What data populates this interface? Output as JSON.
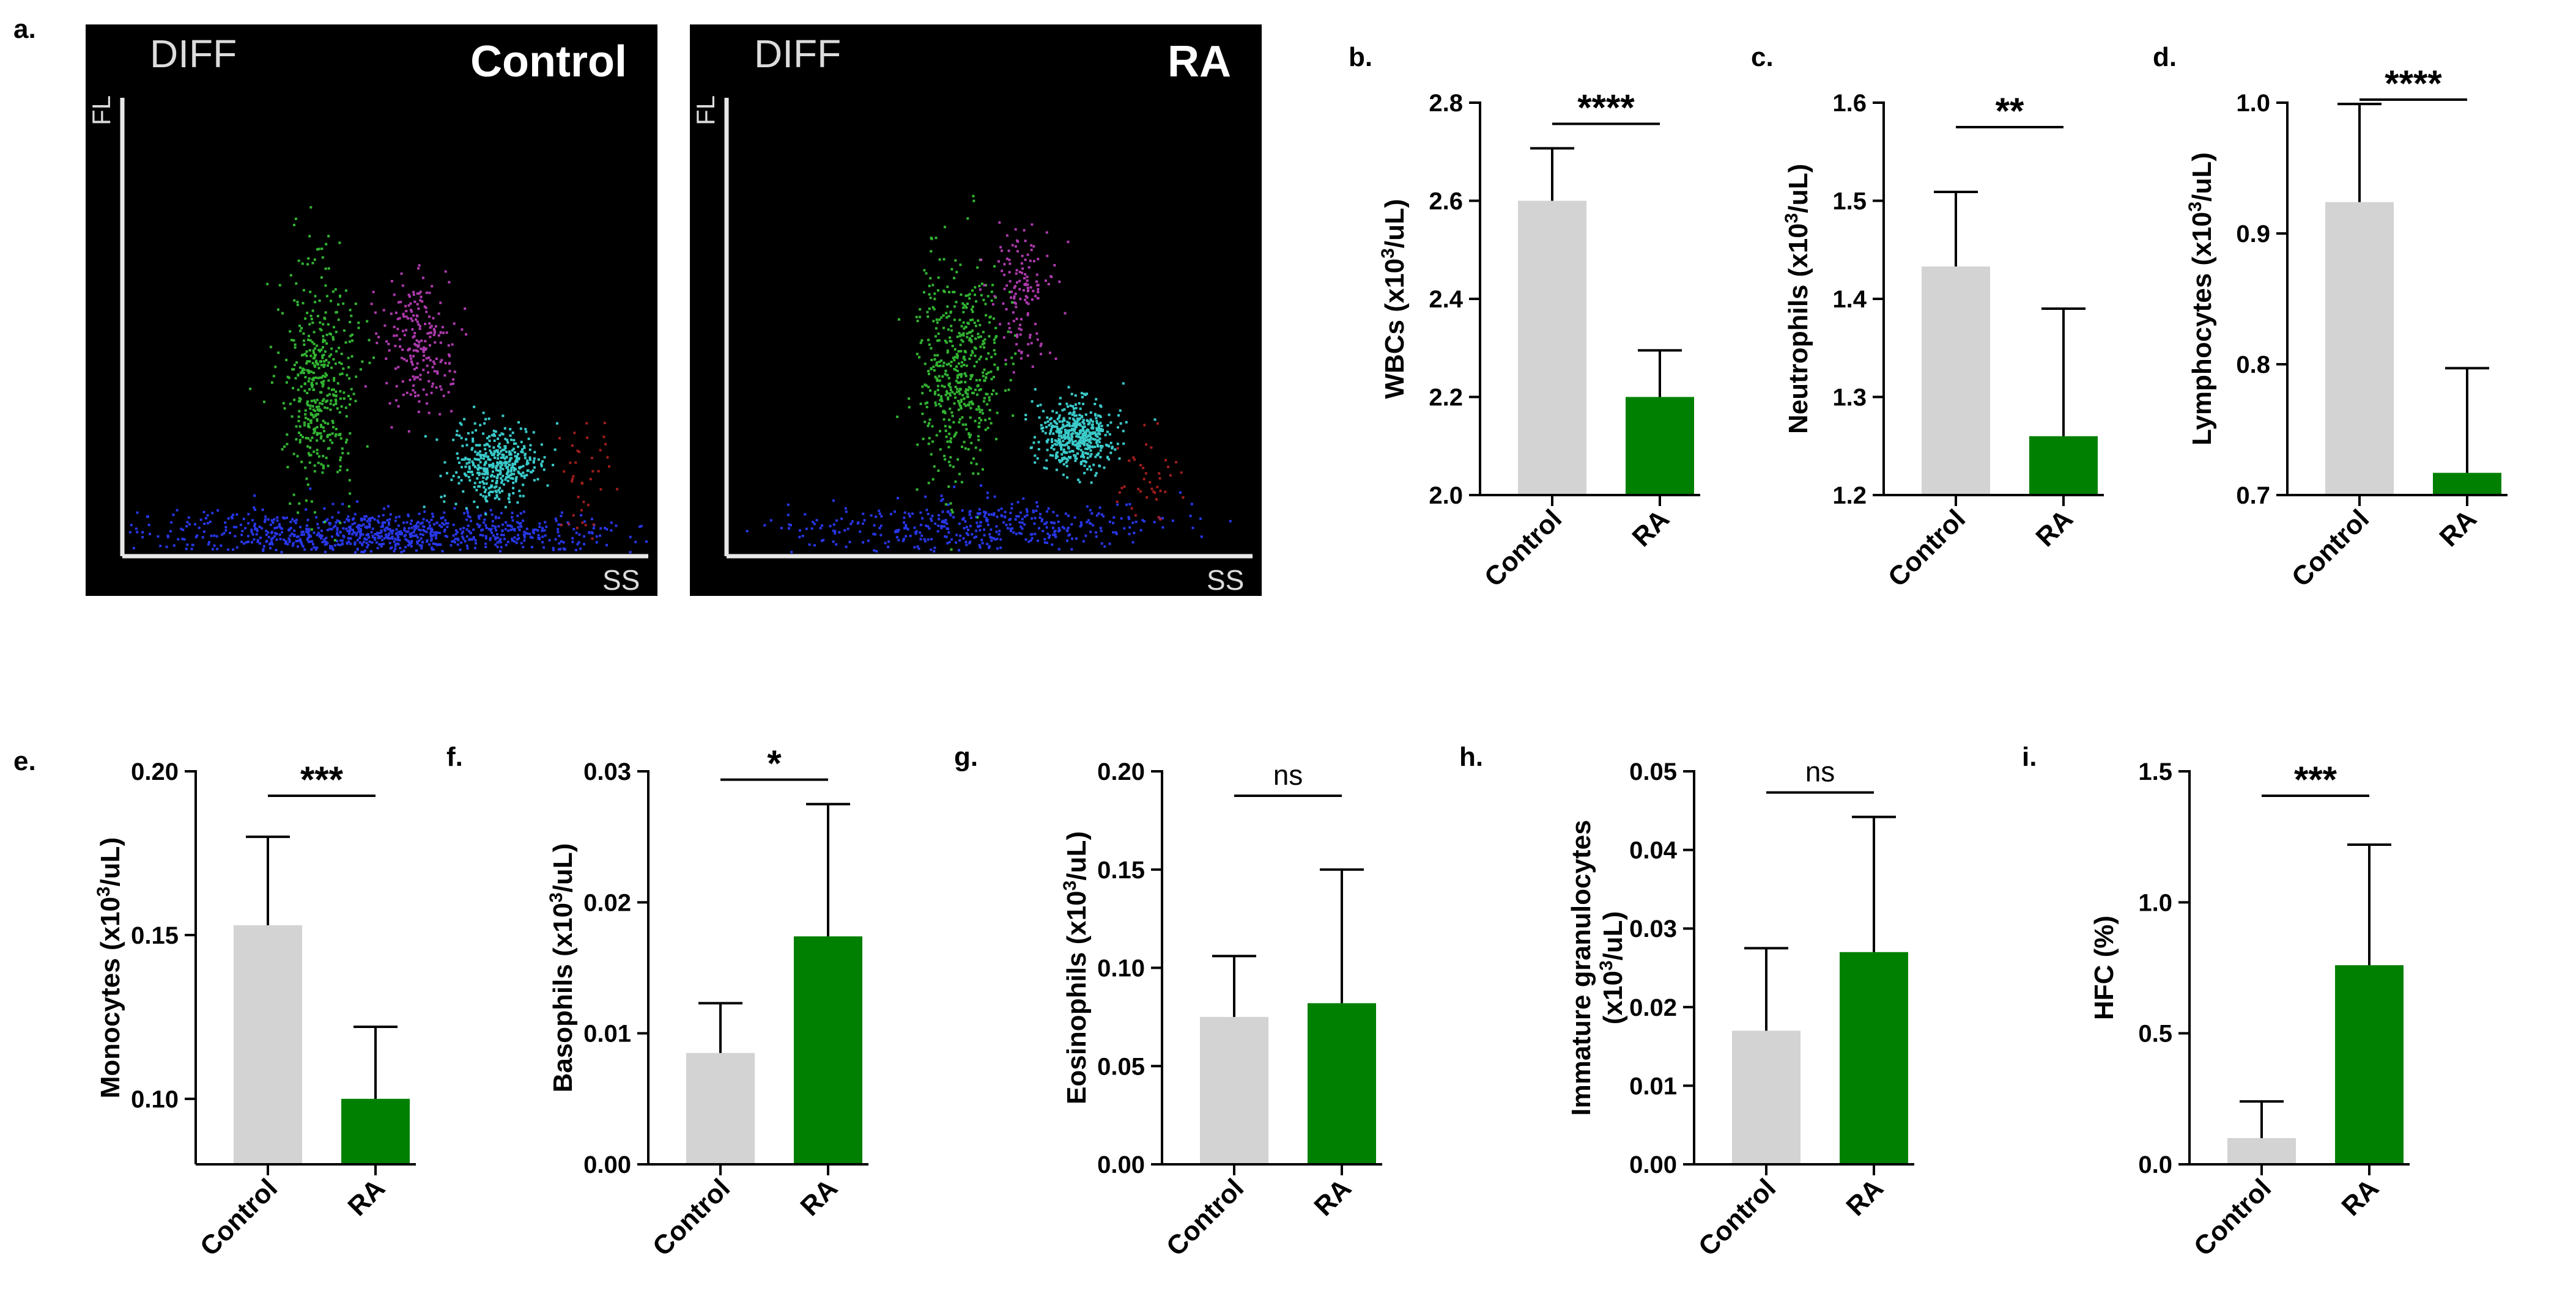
{
  "figure_labels": {
    "a": "a.",
    "b": "b.",
    "c": "c.",
    "d": "d.",
    "e": "e.",
    "f": "f.",
    "g": "g.",
    "h": "h.",
    "i": "i."
  },
  "scatter_panels": [
    {
      "id": "control",
      "title": "DIFF",
      "group": "Control",
      "y_axis": "FL",
      "x_axis": "SS"
    },
    {
      "id": "ra",
      "title": "DIFF",
      "group": "RA",
      "y_axis": "FL",
      "x_axis": "SS"
    }
  ],
  "colors": {
    "control": "#d3d3d3",
    "ra": "#008000",
    "axis": "#000000",
    "blue_pop": "#2b3cff",
    "green_pop": "#37c837",
    "magenta_pop": "#c040c0",
    "cyan_pop": "#40e0e0",
    "red_pop": "#b02020"
  },
  "chart_data": [
    {
      "id": "b",
      "type": "bar",
      "categories": [
        "Control",
        "RA"
      ],
      "values": [
        2.6,
        2.2
      ],
      "errors": [
        0.107,
        0.095
      ],
      "ylabel": "WBCs (x10³/uL)",
      "ylim": [
        2.0,
        2.8
      ],
      "yticks": [
        "2.0",
        "2.2",
        "2.4",
        "2.6",
        "2.8"
      ],
      "significance": "****"
    },
    {
      "id": "c",
      "type": "bar",
      "categories": [
        "Control",
        "RA"
      ],
      "values": [
        1.433,
        1.26
      ],
      "errors": [
        0.076,
        0.13
      ],
      "ylabel": "Neutrophils (x10³/uL)",
      "ylim": [
        1.2,
        1.6
      ],
      "yticks": [
        "1.2",
        "1.3",
        "1.4",
        "1.5",
        "1.6"
      ],
      "significance": "**"
    },
    {
      "id": "d",
      "type": "bar",
      "categories": [
        "Control",
        "RA"
      ],
      "values": [
        0.924,
        0.717
      ],
      "errors": [
        0.075,
        0.08
      ],
      "ylabel": "Lymphocytes (x10³/uL)",
      "ylim": [
        0.7,
        1.0
      ],
      "yticks": [
        "0.7",
        "0.8",
        "0.9",
        "1.0"
      ],
      "significance": "****"
    },
    {
      "id": "e",
      "type": "bar",
      "categories": [
        "Control",
        "RA"
      ],
      "values": [
        0.153,
        0.1
      ],
      "errors": [
        0.027,
        0.022
      ],
      "ylabel": "Monocytes (x10³/uL)",
      "ylim": [
        0.08,
        0.2
      ],
      "yticks": [
        "0.10",
        "0.15",
        "0.20"
      ],
      "ytick_values": [
        0.1,
        0.15,
        0.2
      ],
      "significance": "***"
    },
    {
      "id": "f",
      "type": "bar",
      "categories": [
        "Control",
        "RA"
      ],
      "values": [
        0.0085,
        0.0174
      ],
      "errors": [
        0.0038,
        0.0101
      ],
      "ylabel": "Basophils (x10³/uL)",
      "ylim": [
        0.0,
        0.03
      ],
      "yticks": [
        "0.00",
        "0.01",
        "0.02",
        "0.03"
      ],
      "significance": "*"
    },
    {
      "id": "g",
      "type": "bar",
      "categories": [
        "Control",
        "RA"
      ],
      "values": [
        0.075,
        0.082
      ],
      "errors": [
        0.031,
        0.068
      ],
      "ylabel": "Eosinophils (x10³/uL)",
      "ylim": [
        0.0,
        0.2
      ],
      "yticks": [
        "0.00",
        "0.05",
        "0.10",
        "0.15",
        "0.20"
      ],
      "significance": "ns"
    },
    {
      "id": "h",
      "type": "bar",
      "categories": [
        "Control",
        "RA"
      ],
      "values": [
        0.017,
        0.027
      ],
      "errors": [
        0.0105,
        0.0172
      ],
      "ylabel_line1": "Immature granulocytes",
      "ylabel": "(x10³/uL)",
      "ylim": [
        0.0,
        0.05
      ],
      "yticks": [
        "0.00",
        "0.01",
        "0.02",
        "0.03",
        "0.04",
        "0.05"
      ],
      "significance": "ns"
    },
    {
      "id": "i",
      "type": "bar",
      "categories": [
        "Control",
        "RA"
      ],
      "values": [
        0.1,
        0.76
      ],
      "errors": [
        0.14,
        0.46
      ],
      "ylabel": "HFC (%)",
      "ylim": [
        0.0,
        1.5
      ],
      "yticks": [
        "0.0",
        "0.5",
        "1.0",
        "1.5"
      ],
      "significance": "***"
    }
  ]
}
